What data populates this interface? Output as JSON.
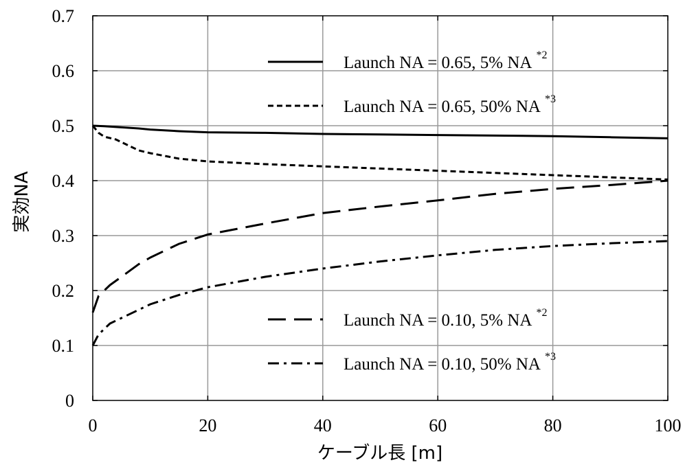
{
  "chart_data": {
    "type": "line",
    "xlabel": "ケーブル長 [m]",
    "ylabel": "実効NA",
    "xlim": [
      0,
      100
    ],
    "ylim": [
      0,
      0.7
    ],
    "x_ticks": [
      "0",
      "20",
      "40",
      "60",
      "80",
      "100"
    ],
    "y_ticks": [
      "0",
      "0.1",
      "0.2",
      "0.3",
      "0.4",
      "0.5",
      "0.6",
      "0.7"
    ],
    "grid": true,
    "series": [
      {
        "name": "Launch NA = 0.65, 5% NA",
        "note": "*2",
        "style": "solid",
        "color": "#000000",
        "x": [
          0,
          2,
          5,
          8,
          10,
          15,
          20,
          30,
          40,
          50,
          60,
          70,
          80,
          90,
          100
        ],
        "y": [
          0.5,
          0.499,
          0.497,
          0.495,
          0.493,
          0.49,
          0.488,
          0.487,
          0.485,
          0.484,
          0.483,
          0.482,
          0.481,
          0.479,
          0.477
        ]
      },
      {
        "name": "Launch NA = 0.65, 50% NA",
        "note": "*3",
        "style": "dotted",
        "color": "#000000",
        "x": [
          0,
          1,
          2,
          4,
          6,
          8,
          10,
          15,
          20,
          30,
          40,
          50,
          60,
          70,
          80,
          90,
          100
        ],
        "y": [
          0.5,
          0.487,
          0.48,
          0.475,
          0.465,
          0.455,
          0.45,
          0.44,
          0.435,
          0.43,
          0.426,
          0.422,
          0.418,
          0.414,
          0.41,
          0.406,
          0.402
        ]
      },
      {
        "name": "Launch NA = 0.10, 5% NA",
        "note": "*2",
        "style": "dashed",
        "color": "#000000",
        "x": [
          0,
          1,
          2,
          3,
          5,
          8,
          10,
          15,
          20,
          30,
          40,
          50,
          60,
          70,
          80,
          90,
          100
        ],
        "y": [
          0.16,
          0.19,
          0.2,
          0.21,
          0.225,
          0.248,
          0.26,
          0.285,
          0.302,
          0.322,
          0.341,
          0.353,
          0.364,
          0.376,
          0.385,
          0.392,
          0.4
        ]
      },
      {
        "name": "Launch NA = 0.10, 50% NA",
        "note": "*3",
        "style": "dashdot",
        "color": "#000000",
        "x": [
          0,
          1,
          2,
          3,
          5,
          8,
          10,
          15,
          20,
          30,
          40,
          50,
          60,
          70,
          80,
          90,
          100
        ],
        "y": [
          0.1,
          0.12,
          0.13,
          0.14,
          0.15,
          0.165,
          0.175,
          0.192,
          0.206,
          0.225,
          0.24,
          0.253,
          0.264,
          0.274,
          0.281,
          0.286,
          0.29
        ]
      }
    ]
  }
}
